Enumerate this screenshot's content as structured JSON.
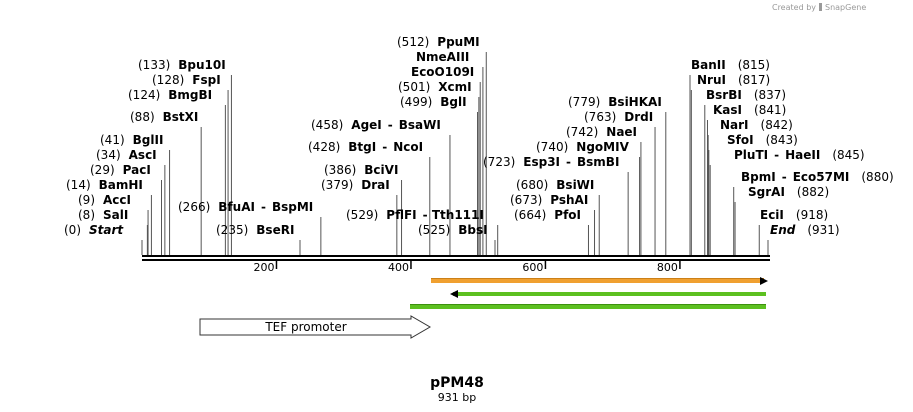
{
  "credit": {
    "text": "Created by",
    "brand": "SnapGene"
  },
  "map": {
    "name": "pPM48",
    "length_label": "931 bp",
    "length": 931
  },
  "ruler": {
    "ticks": [
      "200",
      "400",
      "600",
      "800"
    ],
    "tick_values": [
      200,
      400,
      600,
      800
    ]
  },
  "sites": [
    {
      "id": "start",
      "pos": 0,
      "pos_label": "(0)",
      "name": "Start",
      "special": true
    },
    {
      "id": "sali",
      "pos": 8,
      "pos_label": "(8)",
      "name": "SalI"
    },
    {
      "id": "acci",
      "pos": 9,
      "pos_label": "(9)",
      "name": "AccI"
    },
    {
      "id": "bamhi",
      "pos": 14,
      "pos_label": "(14)",
      "name": "BamHI"
    },
    {
      "id": "paci",
      "pos": 29,
      "pos_label": "(29)",
      "name": "PacI"
    },
    {
      "id": "asci",
      "pos": 34,
      "pos_label": "(34)",
      "name": "AscI"
    },
    {
      "id": "bglii",
      "pos": 41,
      "pos_label": "(41)",
      "name": "BglII"
    },
    {
      "id": "bstxi",
      "pos": 88,
      "pos_label": "(88)",
      "name": "BstXI"
    },
    {
      "id": "bmgbi",
      "pos": 124,
      "pos_label": "(124)",
      "name": "BmgBI"
    },
    {
      "id": "fspi",
      "pos": 128,
      "pos_label": "(128)",
      "name": "FspI"
    },
    {
      "id": "bpu10i",
      "pos": 133,
      "pos_label": "(133)",
      "name": "Bpu10I"
    },
    {
      "id": "bseri",
      "pos": 235,
      "pos_label": "(235)",
      "name": "BseRI"
    },
    {
      "id": "bfuai",
      "pos": 266,
      "pos_label": "(266)",
      "name": "BfuAI",
      "alias": "BspMI"
    },
    {
      "id": "drai",
      "pos": 379,
      "pos_label": "(379)",
      "name": "DraI"
    },
    {
      "id": "bcivi",
      "pos": 386,
      "pos_label": "(386)",
      "name": "BciVI"
    },
    {
      "id": "btgi",
      "pos": 428,
      "pos_label": "(428)",
      "name": "BtgI",
      "alias": "NcoI"
    },
    {
      "id": "agei",
      "pos": 458,
      "pos_label": "(458)",
      "name": "AgeI",
      "alias": "BsaWI"
    },
    {
      "id": "pflfi",
      "pos": 529,
      "pos_label": "(529)",
      "name": "PflFI",
      "alias": "Tth111I"
    },
    {
      "id": "bbsi",
      "pos": 525,
      "pos_label": "(525)",
      "name": "BbsI"
    },
    {
      "id": "bgli",
      "pos": 499,
      "pos_label": "(499)",
      "name": "BglI"
    },
    {
      "id": "xcmi",
      "pos": 501,
      "pos_label": "(501)",
      "name": "XcmI"
    },
    {
      "id": "eco0109i",
      "pos": 503,
      "pos_label": "",
      "name": "EcoO109I"
    },
    {
      "id": "nmeaiii",
      "pos": 507,
      "pos_label": "",
      "name": "NmeAIII"
    },
    {
      "id": "ppumi",
      "pos": 512,
      "pos_label": "(512)",
      "name": "PpuMI"
    },
    {
      "id": "esp3i",
      "pos": 723,
      "pos_label": "(723)",
      "name": "Esp3I",
      "alias": "BsmBI"
    },
    {
      "id": "pfoi",
      "pos": 664,
      "pos_label": "(664)",
      "name": "PfoI"
    },
    {
      "id": "pshai",
      "pos": 673,
      "pos_label": "(673)",
      "name": "PshAI"
    },
    {
      "id": "bsiwi",
      "pos": 680,
      "pos_label": "(680)",
      "name": "BsiWI"
    },
    {
      "id": "ngomiv",
      "pos": 740,
      "pos_label": "(740)",
      "name": "NgoMIV"
    },
    {
      "id": "naei",
      "pos": 742,
      "pos_label": "(742)",
      "name": "NaeI"
    },
    {
      "id": "drdi",
      "pos": 763,
      "pos_label": "(763)",
      "name": "DrdI"
    },
    {
      "id": "bsihkai",
      "pos": 779,
      "pos_label": "(779)",
      "name": "BsiHKAI"
    },
    {
      "id": "banii",
      "pos": 815,
      "pos_label": "(815)",
      "name": "BanII"
    },
    {
      "id": "nrui",
      "pos": 817,
      "pos_label": "(817)",
      "name": "NruI"
    },
    {
      "id": "bsrbi",
      "pos": 837,
      "pos_label": "(837)",
      "name": "BsrBI"
    },
    {
      "id": "kasi",
      "pos": 841,
      "pos_label": "(841)",
      "name": "KasI"
    },
    {
      "id": "nari",
      "pos": 842,
      "pos_label": "(842)",
      "name": "NarI"
    },
    {
      "id": "sfoi",
      "pos": 843,
      "pos_label": "(843)",
      "name": "SfoI"
    },
    {
      "id": "pluti",
      "pos": 845,
      "pos_label": "(845)",
      "name": "PluTI",
      "alias": "HaeII"
    },
    {
      "id": "bpmi",
      "pos": 880,
      "pos_label": "(880)",
      "name": "BpmI",
      "alias": "Eco57MI"
    },
    {
      "id": "sgrai",
      "pos": 882,
      "pos_label": "(882)",
      "name": "SgrAI"
    },
    {
      "id": "ecii",
      "pos": 918,
      "pos_label": "(918)",
      "name": "EciI"
    },
    {
      "id": "end",
      "pos": 931,
      "pos_label": "(931)",
      "name": "End",
      "special": true
    }
  ],
  "features": [
    {
      "id": "orange-feature",
      "start": 428,
      "end": 931,
      "direction": "forward",
      "color": "#f0a030",
      "label": ""
    },
    {
      "id": "green-feature-1",
      "start": 458,
      "end": 931,
      "direction": "reverse",
      "color": "#5cc020",
      "label": ""
    },
    {
      "id": "green-feature-2",
      "start": 400,
      "end": 931,
      "direction": "none",
      "color": "#5cc020",
      "label": ""
    },
    {
      "id": "tef-promoter",
      "start": 80,
      "end": 428,
      "direction": "forward",
      "color": "#ffffff",
      "label": "TEF promoter"
    }
  ]
}
